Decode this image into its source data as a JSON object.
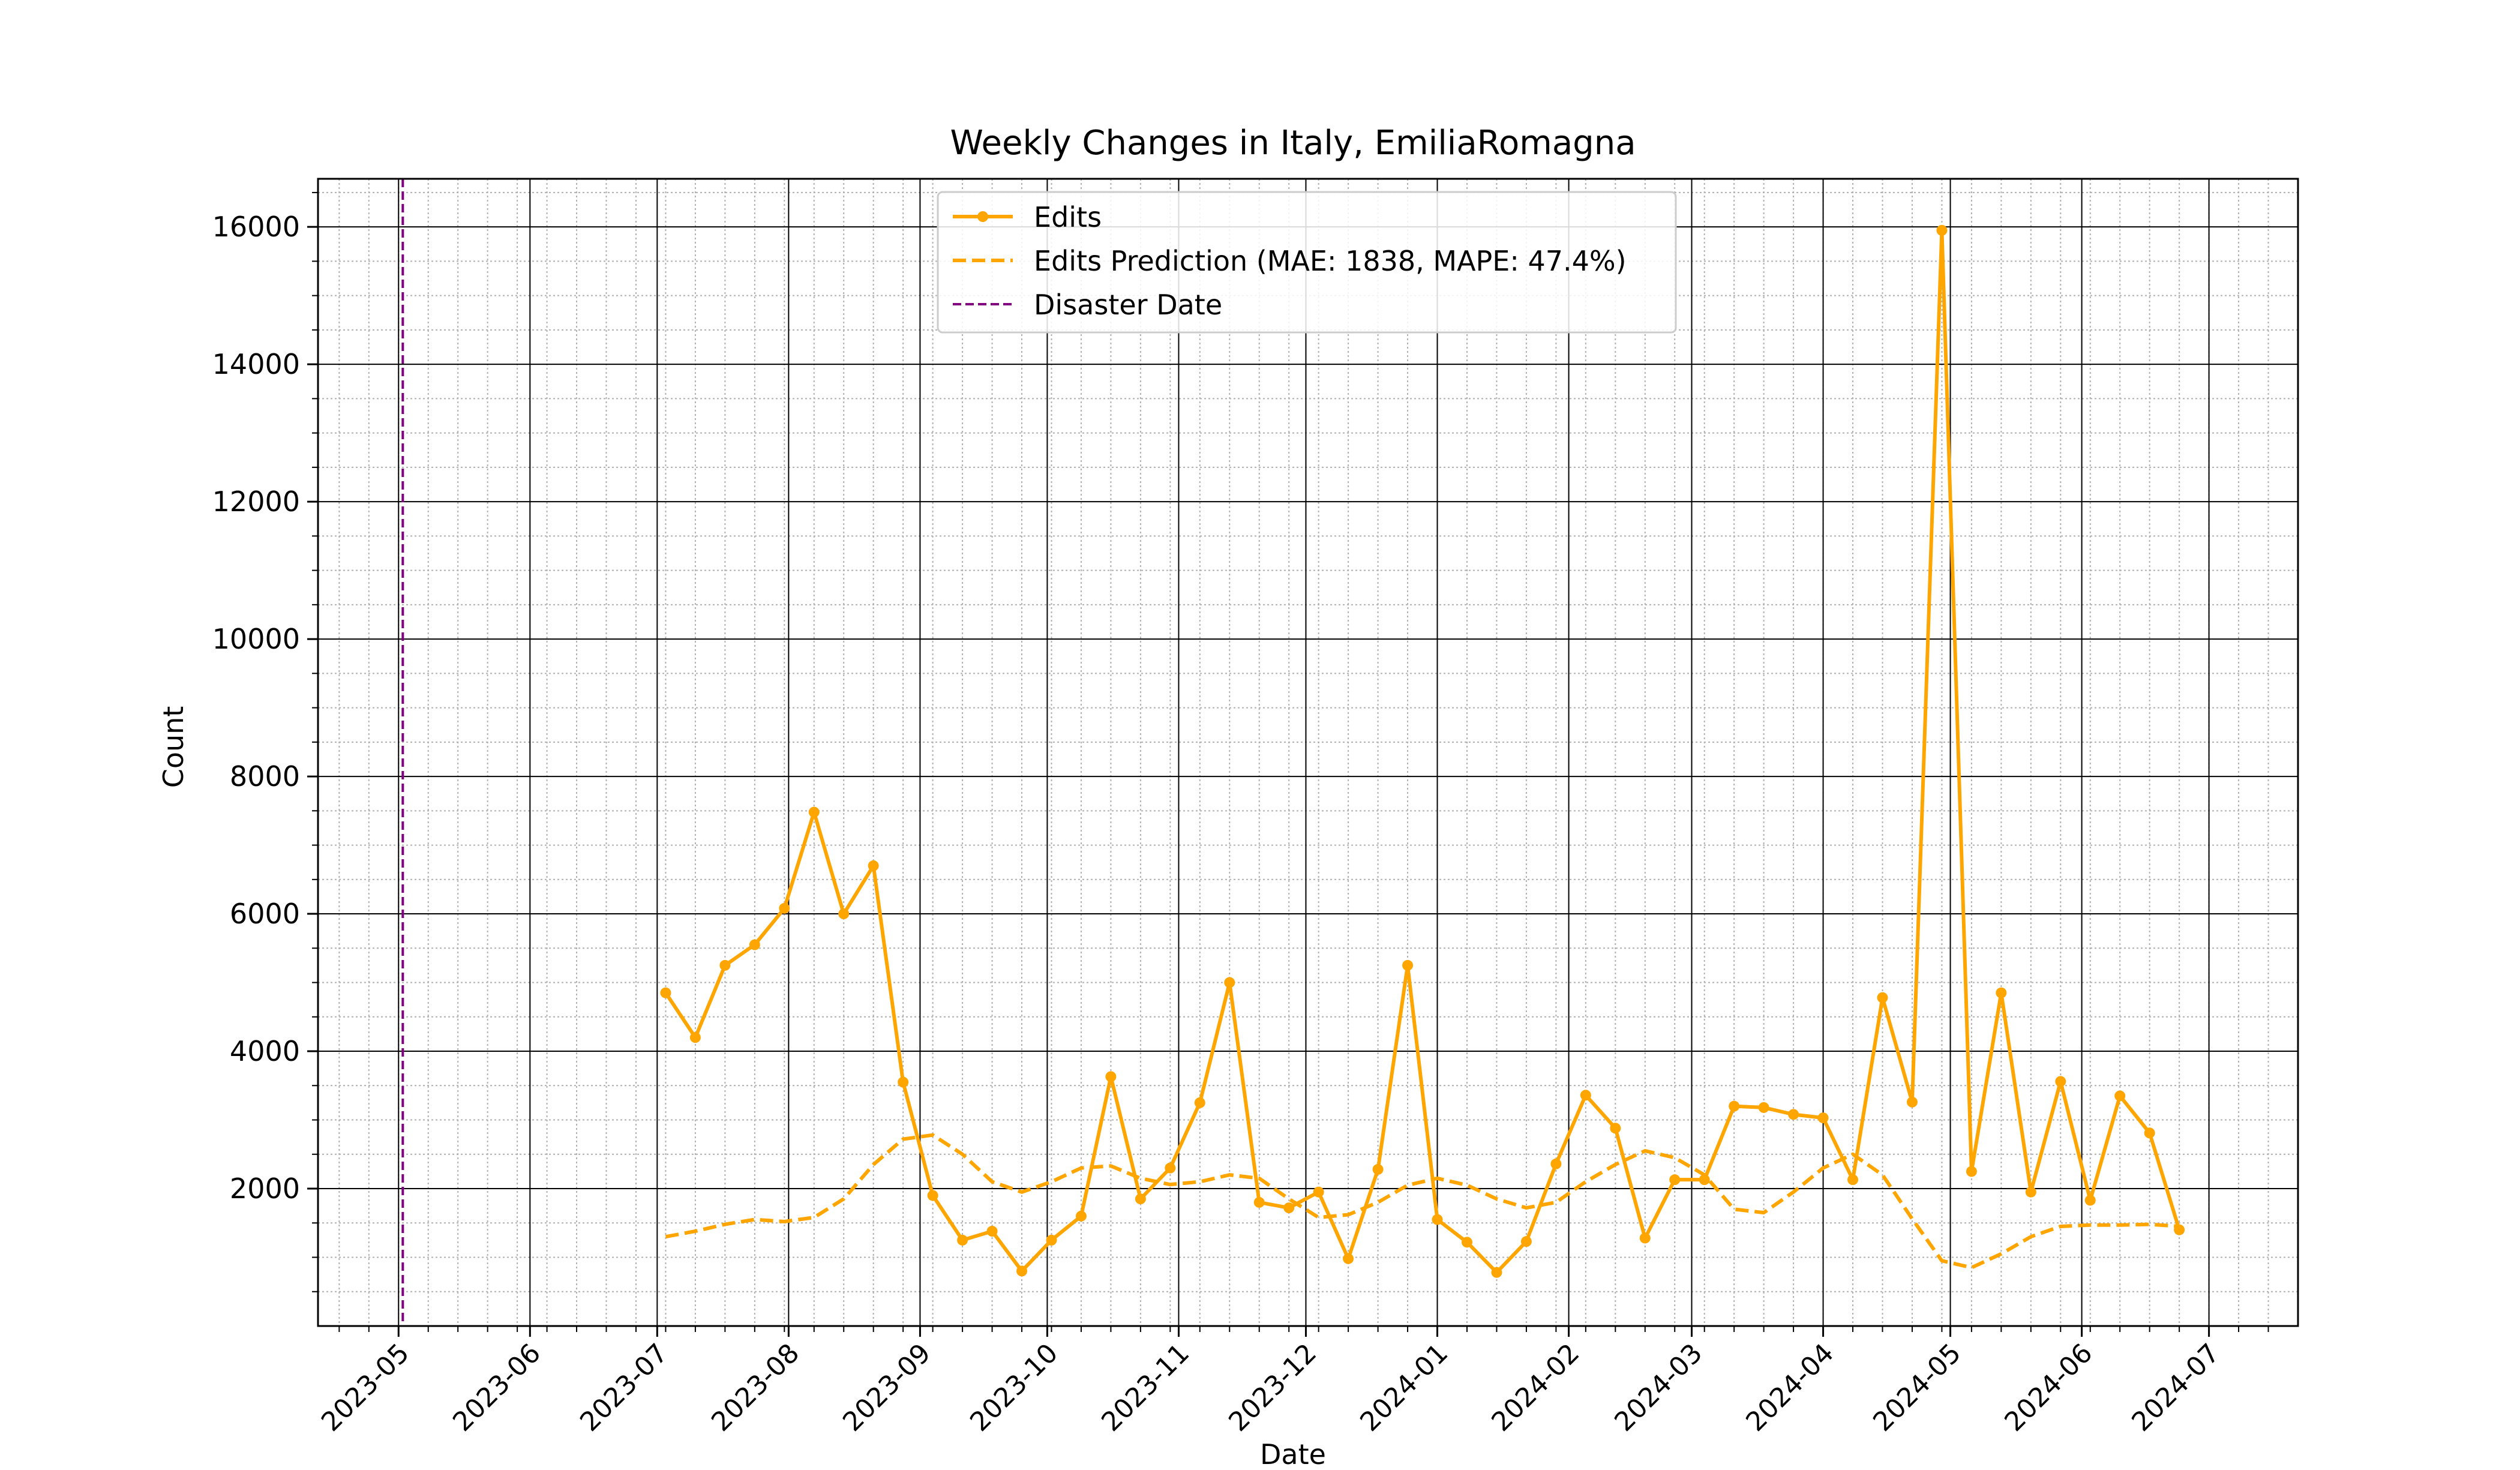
{
  "chart_data": {
    "type": "line",
    "title": "Weekly Changes in Italy, EmiliaRomagna",
    "xlabel": "Date",
    "ylabel": "Count",
    "x_ticks": [
      "2023-05",
      "2023-06",
      "2023-07",
      "2023-08",
      "2023-09",
      "2023-10",
      "2023-11",
      "2023-12",
      "2024-01",
      "2024-02",
      "2024-03",
      "2024-04",
      "2024-05",
      "2024-06",
      "2024-07"
    ],
    "y_ticks": [
      2000,
      4000,
      6000,
      8000,
      10000,
      12000,
      14000,
      16000
    ],
    "xlim": [
      "2023-04-12",
      "2024-07-22"
    ],
    "ylim": [
      0,
      16700
    ],
    "grid": true,
    "legend_position": "top-center",
    "disaster_date": "2023-05-02",
    "series": [
      {
        "name": "Edits",
        "color": "#FFA500",
        "style": "solid-with-markers",
        "x": [
          "2023-07-03",
          "2023-07-10",
          "2023-07-17",
          "2023-07-24",
          "2023-07-31",
          "2023-08-07",
          "2023-08-14",
          "2023-08-21",
          "2023-08-28",
          "2023-09-04",
          "2023-09-11",
          "2023-09-18",
          "2023-09-25",
          "2023-10-02",
          "2023-10-09",
          "2023-10-16",
          "2023-10-23",
          "2023-10-30",
          "2023-11-06",
          "2023-11-13",
          "2023-11-20",
          "2023-11-27",
          "2023-12-04",
          "2023-12-11",
          "2023-12-18",
          "2023-12-25",
          "2024-01-01",
          "2024-01-08",
          "2024-01-15",
          "2024-01-22",
          "2024-01-29",
          "2024-02-05",
          "2024-02-12",
          "2024-02-19",
          "2024-02-26",
          "2024-03-04",
          "2024-03-11",
          "2024-03-18",
          "2024-03-25",
          "2024-04-01",
          "2024-04-08",
          "2024-04-15",
          "2024-04-22",
          "2024-04-29",
          "2024-05-06",
          "2024-05-13",
          "2024-05-20",
          "2024-05-27",
          "2024-06-03",
          "2024-06-10",
          "2024-06-17",
          "2024-06-24"
        ],
        "values": [
          4850,
          4200,
          5250,
          5550,
          6080,
          7480,
          6000,
          6700,
          3550,
          1900,
          1250,
          1380,
          800,
          1250,
          1600,
          3630,
          1850,
          2300,
          3250,
          5000,
          1800,
          1720,
          1950,
          980,
          2280,
          5250,
          1550,
          1220,
          780,
          1230,
          2360,
          3360,
          2880,
          1280,
          2130,
          2130,
          3200,
          3180,
          3080,
          3030,
          2130,
          4780,
          3260,
          15950,
          2250,
          4850,
          1950,
          3560,
          1830,
          3350,
          2810,
          1400
        ]
      },
      {
        "name": "Edits Prediction (MAE: 1838, MAPE: 47.4%)",
        "color": "#FFA500",
        "style": "dashed",
        "x": [
          "2023-07-03",
          "2023-07-10",
          "2023-07-17",
          "2023-07-24",
          "2023-07-31",
          "2023-08-07",
          "2023-08-14",
          "2023-08-21",
          "2023-08-28",
          "2023-09-04",
          "2023-09-11",
          "2023-09-18",
          "2023-09-25",
          "2023-10-02",
          "2023-10-09",
          "2023-10-16",
          "2023-10-23",
          "2023-10-30",
          "2023-11-06",
          "2023-11-13",
          "2023-11-20",
          "2023-11-27",
          "2023-12-04",
          "2023-12-11",
          "2023-12-18",
          "2023-12-25",
          "2024-01-01",
          "2024-01-08",
          "2024-01-15",
          "2024-01-22",
          "2024-01-29",
          "2024-02-05",
          "2024-02-12",
          "2024-02-19",
          "2024-02-26",
          "2024-03-04",
          "2024-03-11",
          "2024-03-18",
          "2024-03-25",
          "2024-04-01",
          "2024-04-08",
          "2024-04-15",
          "2024-04-22",
          "2024-04-29",
          "2024-05-06",
          "2024-05-13",
          "2024-05-20",
          "2024-05-27",
          "2024-06-03",
          "2024-06-10",
          "2024-06-17",
          "2024-06-24"
        ],
        "values": [
          1300,
          1380,
          1480,
          1550,
          1520,
          1580,
          1850,
          2350,
          2720,
          2780,
          2500,
          2100,
          1950,
          2100,
          2300,
          2330,
          2150,
          2060,
          2100,
          2200,
          2150,
          1850,
          1580,
          1620,
          1800,
          2050,
          2150,
          2050,
          1850,
          1720,
          1800,
          2100,
          2350,
          2550,
          2450,
          2200,
          1700,
          1650,
          1950,
          2300,
          2500,
          2200,
          1560,
          950,
          850,
          1050,
          1300,
          1450,
          1470,
          1470,
          1480,
          1450
        ]
      },
      {
        "name": "Disaster Date",
        "color": "#800080",
        "style": "dashed-vertical"
      }
    ]
  }
}
